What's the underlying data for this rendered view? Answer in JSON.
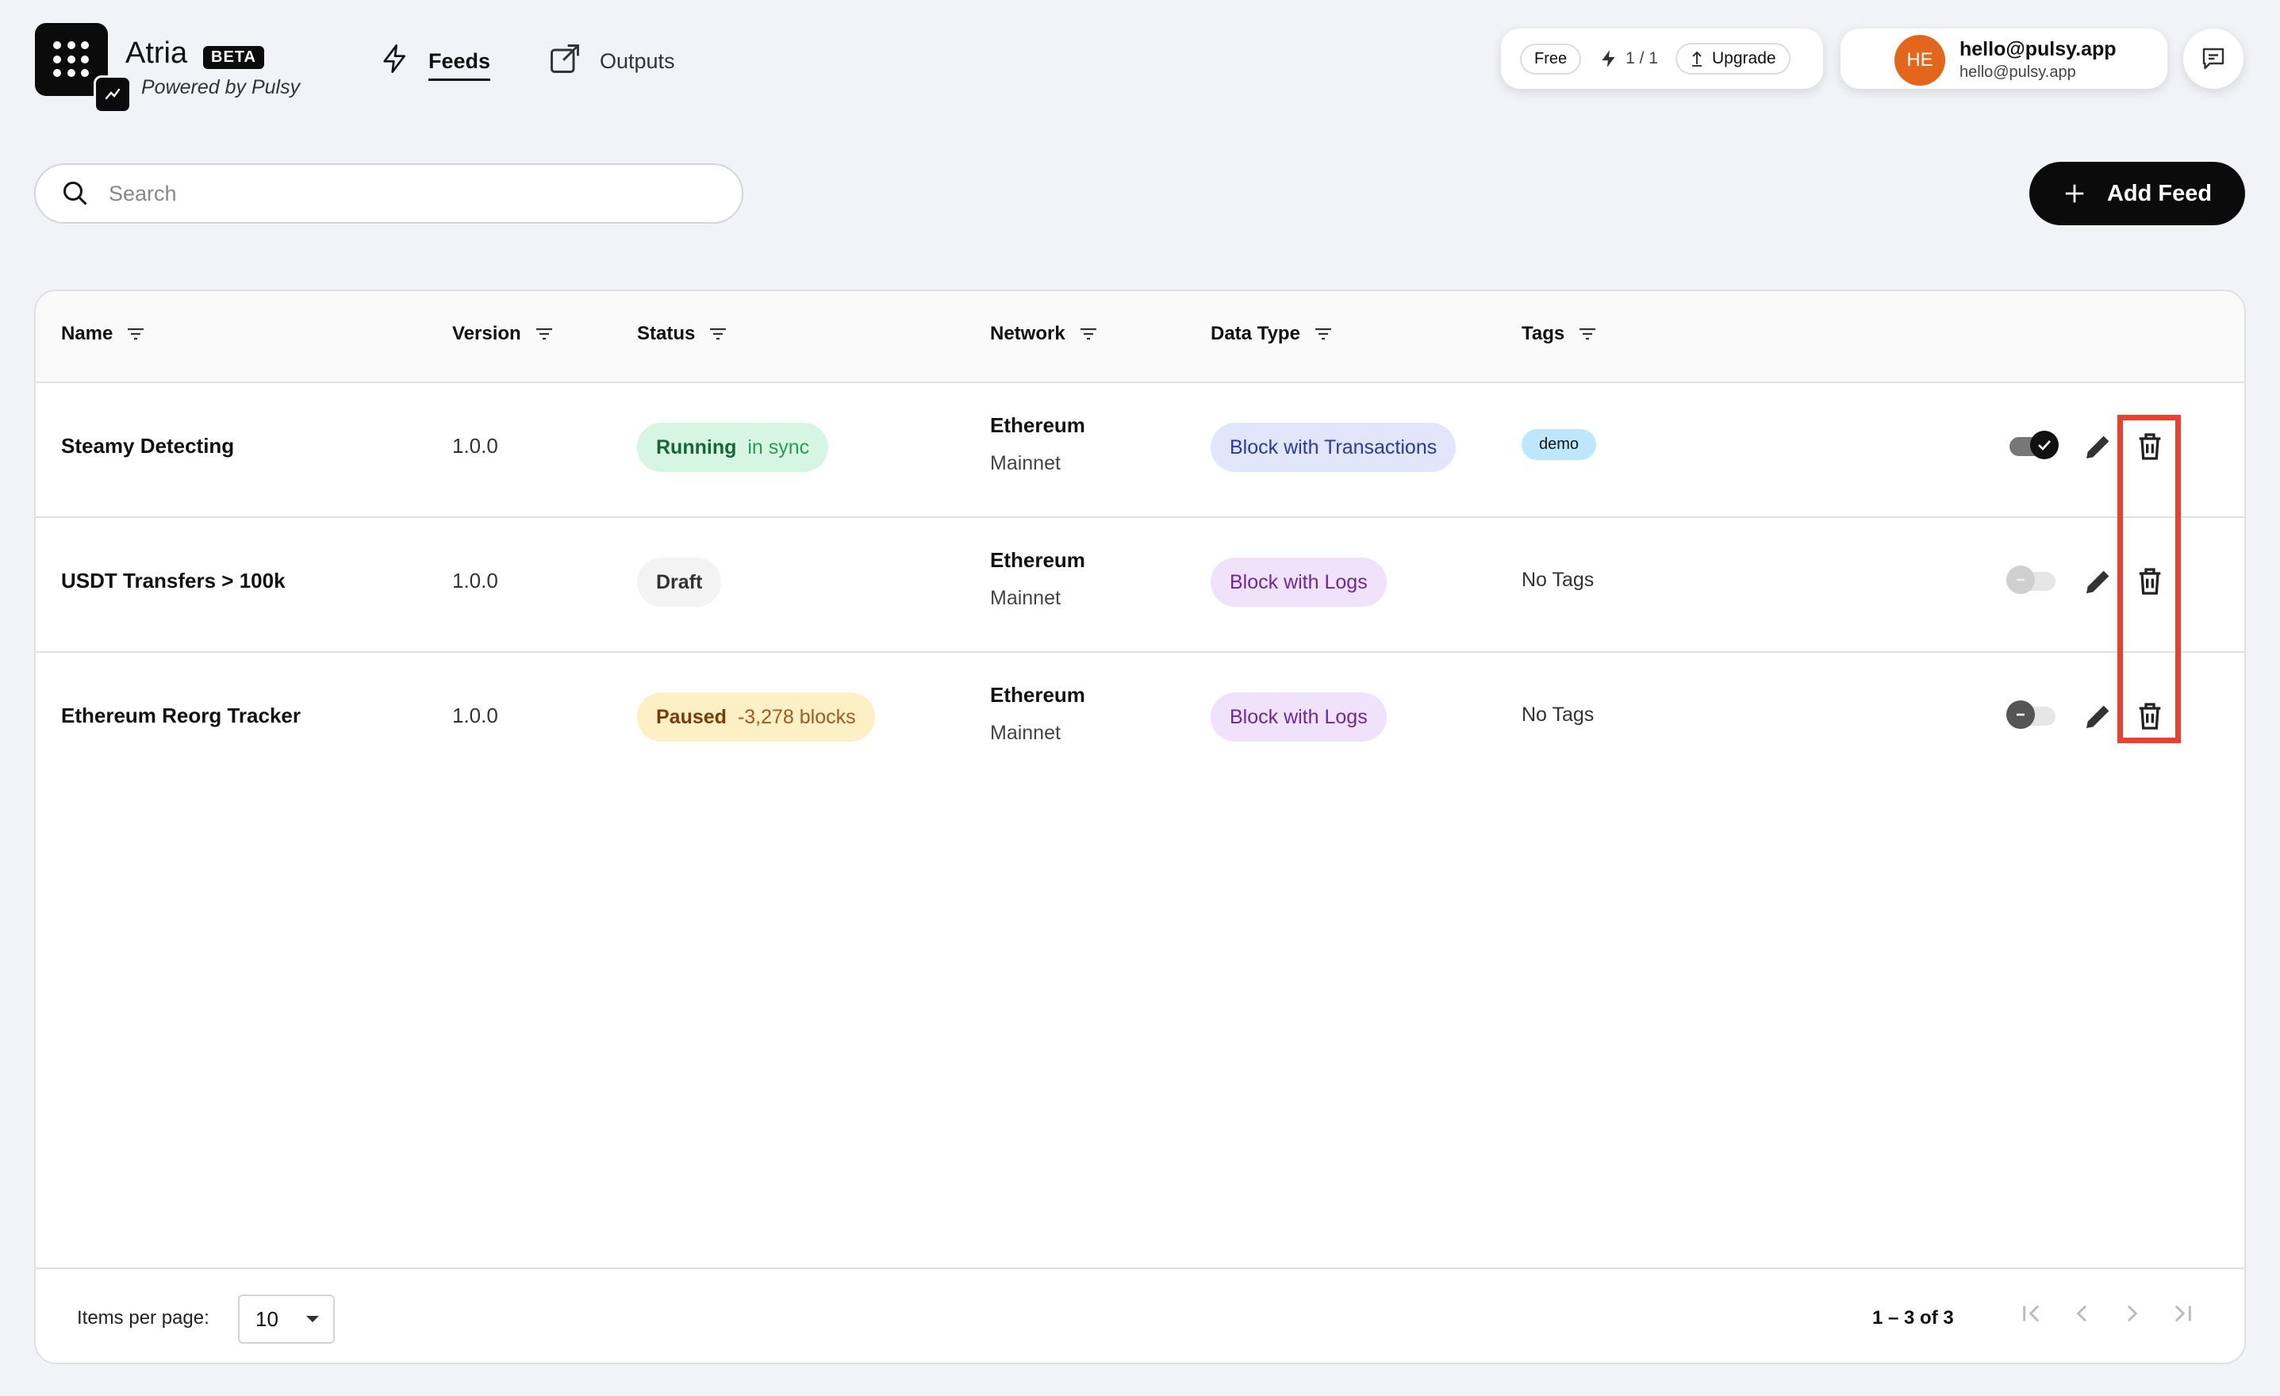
{
  "header": {
    "app_name": "Atria",
    "beta_label": "BETA",
    "powered_by": "Powered by Pulsy",
    "nav": [
      {
        "label": "Feeds",
        "active": true,
        "icon": "bolt-icon"
      },
      {
        "label": "Outputs",
        "active": false,
        "icon": "external-link-icon"
      }
    ],
    "plan": {
      "name": "Free",
      "credits": "1 / 1",
      "upgrade_label": "Upgrade"
    },
    "user": {
      "initials": "HE",
      "name": "hello@pulsy.app",
      "email": "hello@pulsy.app",
      "avatar_color": "#e3661d"
    }
  },
  "search": {
    "placeholder": "Search",
    "value": ""
  },
  "add_feed_label": "Add Feed",
  "table": {
    "columns": [
      "Name",
      "Version",
      "Status",
      "Network",
      "Data Type",
      "Tags"
    ],
    "rows": [
      {
        "name": "Steamy Detecting",
        "version": "1.0.0",
        "status": "Running",
        "status_detail": "in sync",
        "network": "Ethereum",
        "network_sub": "Mainnet",
        "data_type": "Block with Transactions",
        "tags": "demo",
        "enabled": true
      },
      {
        "name": "USDT Transfers > 100k",
        "version": "1.0.0",
        "status": "Draft",
        "status_detail": "",
        "network": "Ethereum",
        "network_sub": "Mainnet",
        "data_type": "Block with Logs",
        "tags": "No Tags",
        "enabled": false
      },
      {
        "name": "Ethereum Reorg Tracker",
        "version": "1.0.0",
        "status": "Paused",
        "status_detail": "-3,278 blocks",
        "network": "Ethereum",
        "network_sub": "Mainnet",
        "data_type": "Block with Logs",
        "tags": "No Tags",
        "enabled": false
      }
    ]
  },
  "pagination": {
    "items_per_page_label": "Items per page:",
    "items_per_page": "10",
    "range": "1 – 3 of 3"
  },
  "colors": {
    "running_bg": "#d6f5e2",
    "paused_bg": "#fdf0c4",
    "draft_bg": "#f3f3f3",
    "tx_bg": "#e2e6fb",
    "logs_bg": "#f1e2fb",
    "tag_bg": "#bde8fb",
    "highlight": "#e8422e"
  }
}
